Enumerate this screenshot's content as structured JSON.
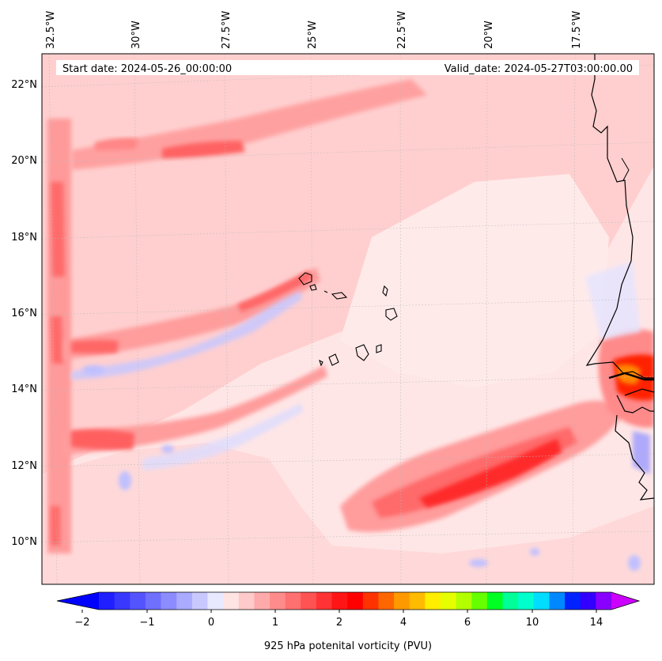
{
  "header": {
    "start_date": "Start date: 2024-05-26_00:00:00",
    "valid_date": "Valid_date: 2024-05-27T03:00:00.00"
  },
  "map": {
    "lon_labels": [
      "32.5°W",
      "30°W",
      "27.5°W",
      "25°W",
      "22.5°W",
      "20°W",
      "17.5°W"
    ],
    "lat_labels": [
      "22°N",
      "20°N",
      "18°N",
      "16°N",
      "14°N",
      "12°N",
      "10°N"
    ],
    "lon_range": [
      -33,
      -15.2
    ],
    "lat_range": [
      8.9,
      22.7
    ]
  },
  "colorbar": {
    "label": "925 hPa potenital vorticity (PVU)",
    "tick_labels": [
      "−2",
      "−1",
      "0",
      "1",
      "2",
      "4",
      "6",
      "10",
      "14"
    ],
    "colors": [
      "#1f1fff",
      "#3838ff",
      "#5454ff",
      "#7070ff",
      "#8c8cff",
      "#aaaaff",
      "#c8c8ff",
      "#e8e8ff",
      "#ffe4e4",
      "#ffcaca",
      "#ffaaaa",
      "#ff8c8c",
      "#ff7070",
      "#ff5252",
      "#ff3333",
      "#ff1515",
      "#ff0000",
      "#ff3300",
      "#ff6600",
      "#ff9900",
      "#ffbb00",
      "#ffee00",
      "#e6ff00",
      "#b3ff00",
      "#66ff00",
      "#00ff22",
      "#00ff99",
      "#00ffcc",
      "#00ddff",
      "#0088ff",
      "#0022ff",
      "#3300ff",
      "#8800ff"
    ],
    "extend_low_color": "#0000ff",
    "extend_high_color": "#cc00ff"
  }
}
